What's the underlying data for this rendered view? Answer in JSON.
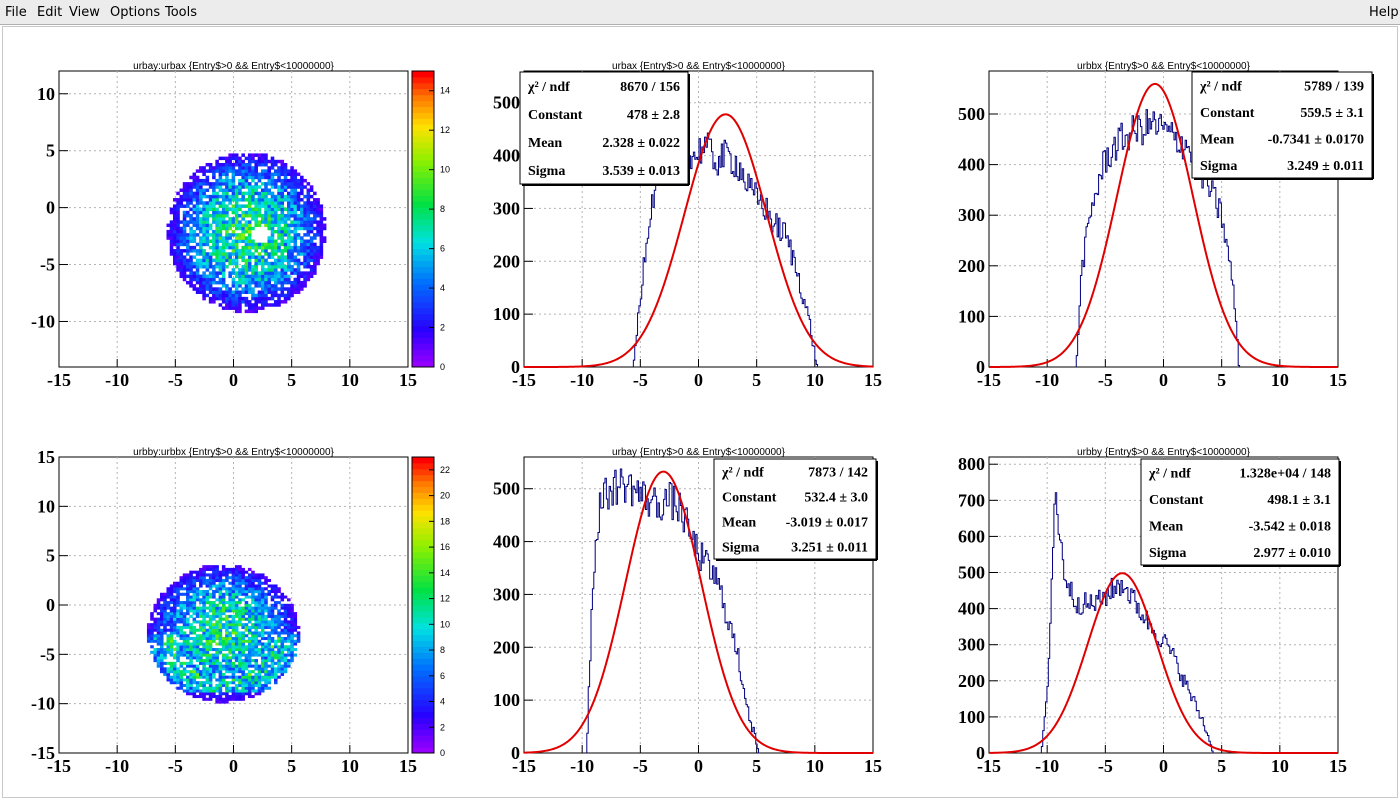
{
  "menu": {
    "file": "File",
    "edit": "Edit",
    "view": "View",
    "options": "Options",
    "tools": "Tools",
    "help": "Help"
  },
  "colors": {
    "hist_line": "#000080",
    "fit_line": "#e00000",
    "grid": "#b4b4b4"
  },
  "chart_data": [
    {
      "type": "heatmap",
      "title": "urbay:urbax {Entry$>0 && Entry$<10000000}",
      "xlim": [
        -15,
        15
      ],
      "ylim": [
        -14,
        12
      ],
      "xticks": [
        "-15",
        "-10",
        "-5",
        "0",
        "5",
        "10",
        "15"
      ],
      "yticks": [
        "10",
        "5",
        "0",
        "-5",
        "-10"
      ],
      "zlim": [
        0,
        15
      ],
      "palette_ticks": [
        "0",
        "2",
        "4",
        "6",
        "8",
        "10",
        "12",
        "14"
      ],
      "blob": {
        "center": [
          1.0,
          -2.3
        ],
        "rx": 6.8,
        "ry": 7.0,
        "hole": [
          2.2,
          -2.5
        ],
        "peak": 8
      },
      "grid": true
    },
    {
      "type": "line",
      "title": "urbax {Entry$>0 && Entry$<10000000}",
      "xlim": [
        -15,
        15
      ],
      "ylim": [
        0,
        560
      ],
      "xticks": [
        "-15",
        "-10",
        "-5",
        "0",
        "5",
        "10",
        "15"
      ],
      "yticks": [
        "0",
        "100",
        "200",
        "300",
        "400",
        "500"
      ],
      "grid": true,
      "hist": {
        "x": [
          -5.6,
          -4.5,
          -3.5,
          -2.5,
          -1.5,
          -0.5,
          0.5,
          1.5,
          2.5,
          3.5,
          4.5,
          5.5,
          6.5,
          7.5,
          8.5,
          9.5,
          10.2
        ],
        "y": [
          0,
          240,
          380,
          420,
          410,
          395,
          420,
          390,
          400,
          380,
          330,
          310,
          270,
          250,
          180,
          90,
          0
        ]
      },
      "fit": {
        "constant": 478,
        "mean": 2.328,
        "sigma": 3.539
      },
      "stats": [
        {
          "label": "χ² / ndf",
          "value": "8670 / 156"
        },
        {
          "label": "Constant",
          "value": "478 ± 2.8"
        },
        {
          "label": "Mean",
          "value": "2.328 ± 0.022"
        },
        {
          "label": "Sigma",
          "value": "3.539 ± 0.013"
        }
      ]
    },
    {
      "type": "line",
      "title": "urbbx {Entry$>0 && Entry$<10000000}",
      "xlim": [
        -15,
        15
      ],
      "ylim": [
        0,
        585
      ],
      "xticks": [
        "-15",
        "-10",
        "-5",
        "0",
        "5",
        "10",
        "15"
      ],
      "yticks": [
        "0",
        "100",
        "200",
        "300",
        "400",
        "500"
      ],
      "grid": true,
      "hist": {
        "x": [
          -7.5,
          -7,
          -6,
          -5,
          -4,
          -3,
          -2,
          -1,
          0,
          1,
          2,
          3,
          4,
          5,
          6,
          6.5
        ],
        "y": [
          0,
          200,
          330,
          410,
          440,
          460,
          470,
          480,
          470,
          450,
          440,
          400,
          350,
          300,
          160,
          0
        ]
      },
      "fit": {
        "constant": 559.5,
        "mean": -0.7341,
        "sigma": 3.249
      },
      "stats": [
        {
          "label": "χ² / ndf",
          "value": "5789 / 139"
        },
        {
          "label": "Constant",
          "value": "559.5 ± 3.1"
        },
        {
          "label": "Mean",
          "value": "-0.7341 ± 0.0170"
        },
        {
          "label": "Sigma",
          "value": "3.249 ± 0.011"
        }
      ]
    },
    {
      "type": "heatmap",
      "title": "urbby:urbbx {Entry$>0 && Entry$<10000000}",
      "xlim": [
        -15,
        15
      ],
      "ylim": [
        -15,
        15
      ],
      "xticks": [
        "-15",
        "-10",
        "-5",
        "0",
        "5",
        "10",
        "15"
      ],
      "yticks": [
        "15",
        "10",
        "5",
        "0",
        "-5",
        "-10",
        "-15"
      ],
      "zlim": [
        0,
        23
      ],
      "palette_ticks": [
        "0",
        "2",
        "4",
        "6",
        "8",
        "10",
        "12",
        "14",
        "16",
        "18",
        "20",
        "22"
      ],
      "blob": {
        "center": [
          -1.0,
          -3.0
        ],
        "rx": 6.5,
        "ry": 7.0,
        "band": [
          -9,
          -3
        ],
        "peak": 12
      },
      "grid": true
    },
    {
      "type": "line",
      "title": "urbay {Entry$>0 && Entry$<10000000}",
      "xlim": [
        -15,
        15
      ],
      "ylim": [
        0,
        560
      ],
      "xticks": [
        "-15",
        "-10",
        "-5",
        "0",
        "5",
        "10",
        "15"
      ],
      "yticks": [
        "0",
        "100",
        "200",
        "300",
        "400",
        "500"
      ],
      "grid": true,
      "hist": {
        "x": [
          -9.6,
          -9.1,
          -8.5,
          -7.5,
          -6.5,
          -5.5,
          -4.5,
          -3.5,
          -2.5,
          -1.5,
          -0.5,
          0.5,
          1.5,
          2.5,
          3.5,
          4.5,
          5.2
        ],
        "y": [
          0,
          320,
          470,
          500,
          510,
          500,
          480,
          470,
          480,
          460,
          400,
          360,
          330,
          260,
          170,
          60,
          0
        ]
      },
      "fit": {
        "constant": 532.4,
        "mean": -3.019,
        "sigma": 3.251
      },
      "stats": [
        {
          "label": "χ² / ndf",
          "value": "7873 / 142"
        },
        {
          "label": "Constant",
          "value": "532.4 ± 3.0"
        },
        {
          "label": "Mean",
          "value": "-3.019 ± 0.017"
        },
        {
          "label": "Sigma",
          "value": "3.251 ± 0.011"
        }
      ]
    },
    {
      "type": "line",
      "title": "urbby {Entry$>0 && Entry$<10000000}",
      "xlim": [
        -15,
        15
      ],
      "ylim": [
        0,
        820
      ],
      "xticks": [
        "-15",
        "-10",
        "-5",
        "0",
        "5",
        "10",
        "15"
      ],
      "yticks": [
        "0",
        "100",
        "200",
        "300",
        "400",
        "500",
        "600",
        "700",
        "800"
      ],
      "grid": true,
      "hist": {
        "x": [
          -10.5,
          -10,
          -9.6,
          -9.3,
          -9,
          -8.5,
          -8,
          -7.5,
          -6.5,
          -5.5,
          -4.5,
          -3.5,
          -2.5,
          -1.5,
          -0.5,
          0.5,
          1.5,
          2.5,
          3.5,
          4.3
        ],
        "y": [
          0,
          150,
          480,
          740,
          620,
          500,
          450,
          420,
          410,
          420,
          450,
          470,
          420,
          370,
          330,
          290,
          220,
          150,
          80,
          0
        ]
      },
      "fit": {
        "constant": 498.1,
        "mean": -3.542,
        "sigma": 2.977
      },
      "stats": [
        {
          "label": "χ² / ndf",
          "value": "1.328e+04 / 148"
        },
        {
          "label": "Constant",
          "value": "498.1 ± 3.1"
        },
        {
          "label": "Mean",
          "value": "-3.542 ± 0.018"
        },
        {
          "label": "Sigma",
          "value": "2.977 ± 0.010"
        }
      ]
    }
  ]
}
